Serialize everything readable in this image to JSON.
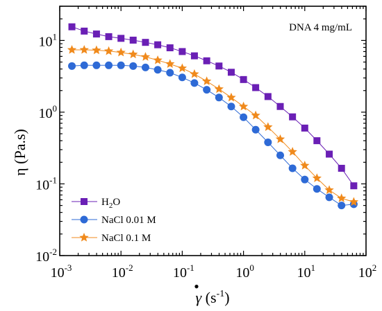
{
  "chart_data": {
    "type": "scatter",
    "annotation": "DNA 4 mg/mL",
    "xlabel": {
      "main": "γ",
      "dot": "•",
      "unit_open": " (s",
      "unit_exp": "-1",
      "unit_close": ")"
    },
    "ylabel": "η (Pa.s)",
    "xscale": "log",
    "yscale": "log",
    "xlim": [
      0.001,
      100
    ],
    "ylim": [
      0.01,
      30
    ],
    "x_ticks": [
      {
        "value": 0.001,
        "base": "10",
        "exp": "-3"
      },
      {
        "value": 0.01,
        "base": "10",
        "exp": "-2"
      },
      {
        "value": 0.1,
        "base": "10",
        "exp": "-1"
      },
      {
        "value": 1,
        "base": "10",
        "exp": "0"
      },
      {
        "value": 10,
        "base": "10",
        "exp": "1"
      },
      {
        "value": 100,
        "base": "10",
        "exp": "2"
      }
    ],
    "y_ticks": [
      {
        "value": 0.01,
        "base": "10",
        "exp": "-2"
      },
      {
        "value": 0.1,
        "base": "10",
        "exp": "-1"
      },
      {
        "value": 1,
        "base": "10",
        "exp": "0"
      },
      {
        "value": 10,
        "base": "10",
        "exp": "1"
      }
    ],
    "x": [
      0.00158,
      0.00251,
      0.00398,
      0.00631,
      0.01,
      0.0158,
      0.0251,
      0.0398,
      0.0631,
      0.1,
      0.158,
      0.251,
      0.398,
      0.631,
      1.0,
      1.58,
      2.51,
      3.98,
      6.31,
      10.0,
      15.8,
      25.1,
      39.8,
      63.1
    ],
    "series": [
      {
        "name": "H2O",
        "label_main": "H",
        "label_sub": "2",
        "label_tail": "O",
        "marker": "square",
        "color": "#6a1fb5",
        "values": [
          15.5,
          13.5,
          12.3,
          11.3,
          10.7,
          10.1,
          9.4,
          8.7,
          7.9,
          7.0,
          6.1,
          5.2,
          4.4,
          3.6,
          2.85,
          2.2,
          1.65,
          1.2,
          0.86,
          0.6,
          0.4,
          0.26,
          0.165,
          0.094
        ]
      },
      {
        "name": "NaCl 0.01 M",
        "label_main": "NaCl 0.01 M",
        "label_sub": "",
        "label_tail": "",
        "marker": "circle",
        "color": "#2e6ad6",
        "values": [
          4.4,
          4.5,
          4.5,
          4.5,
          4.5,
          4.4,
          4.2,
          3.9,
          3.55,
          3.05,
          2.55,
          2.05,
          1.6,
          1.2,
          0.85,
          0.57,
          0.38,
          0.25,
          0.165,
          0.115,
          0.085,
          0.065,
          0.05,
          0.052
        ]
      },
      {
        "name": "NaCl 0.1 M",
        "label_main": "NaCl 0.1 M",
        "label_sub": "",
        "label_tail": "",
        "marker": "star",
        "color": "#f08a1c",
        "values": [
          7.4,
          7.4,
          7.3,
          7.1,
          6.8,
          6.4,
          5.9,
          5.3,
          4.7,
          4.1,
          3.4,
          2.7,
          2.1,
          1.6,
          1.2,
          0.9,
          0.62,
          0.42,
          0.28,
          0.18,
          0.12,
          0.082,
          0.063,
          0.056
        ]
      }
    ],
    "legend_position": "bottom-left",
    "grid": false
  }
}
